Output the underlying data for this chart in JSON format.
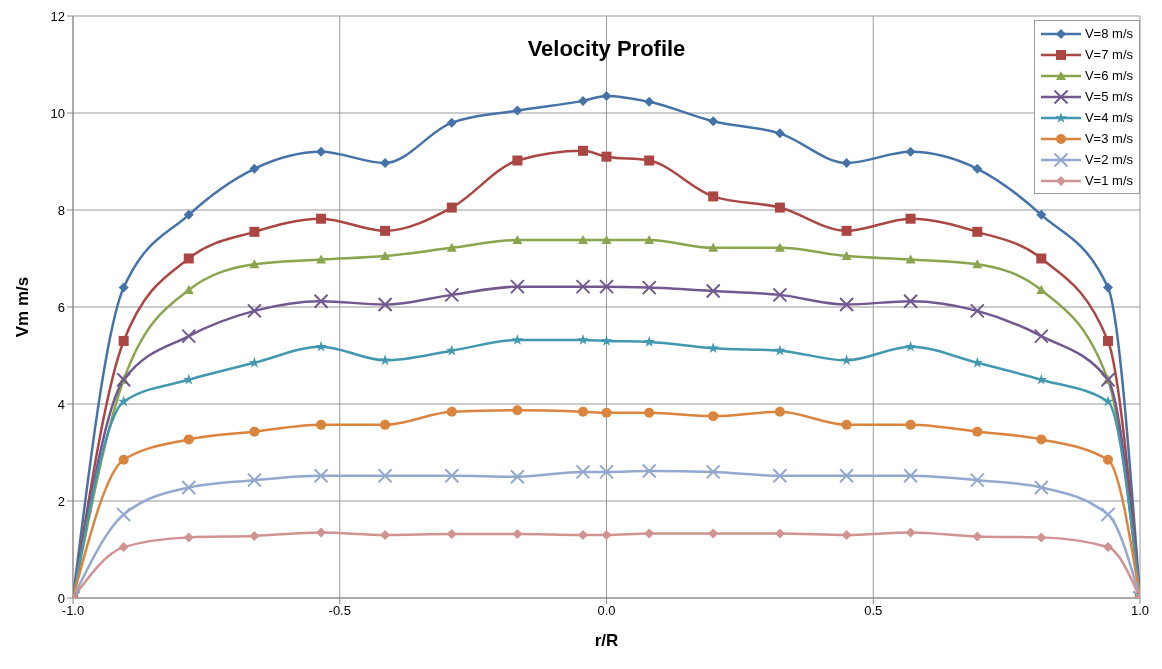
{
  "chart_data": {
    "type": "line",
    "title": "Velocity Profile",
    "xlabel": "r/R",
    "ylabel": "Vm m/s",
    "x": [
      -1,
      -0.905,
      -0.783,
      -0.66,
      -0.535,
      -0.415,
      -0.29,
      -0.167,
      -0.044,
      0,
      0.08,
      0.2,
      0.325,
      0.45,
      0.57,
      0.695,
      0.815,
      0.94,
      1
    ],
    "series": [
      {
        "name": "V=8 m/s",
        "color": "#4572a7",
        "marker": "diamond",
        "values": [
          0,
          6.4,
          7.9,
          8.85,
          9.2,
          8.97,
          9.8,
          10.05,
          10.25,
          10.35,
          10.23,
          9.83,
          9.58,
          8.97,
          9.2,
          8.85,
          7.9,
          6.4,
          0
        ]
      },
      {
        "name": "V=7 m/s",
        "color": "#aa4643",
        "marker": "square",
        "values": [
          0,
          5.3,
          7.0,
          7.55,
          7.82,
          7.57,
          8.05,
          9.02,
          9.22,
          9.1,
          9.02,
          8.28,
          8.05,
          7.57,
          7.82,
          7.55,
          7.0,
          5.3,
          0
        ]
      },
      {
        "name": "V=6 m/s",
        "color": "#89a54e",
        "marker": "triangle",
        "values": [
          0,
          4.5,
          6.35,
          6.88,
          6.98,
          7.05,
          7.22,
          7.38,
          7.38,
          7.38,
          7.38,
          7.22,
          7.22,
          7.05,
          6.98,
          6.88,
          6.35,
          4.5,
          0
        ]
      },
      {
        "name": "V=5 m/s",
        "color": "#71588f",
        "marker": "cross",
        "values": [
          0,
          4.5,
          5.4,
          5.92,
          6.12,
          6.05,
          6.25,
          6.42,
          6.42,
          6.42,
          6.4,
          6.33,
          6.25,
          6.05,
          6.12,
          5.92,
          5.4,
          4.5,
          0
        ]
      },
      {
        "name": "V=4 m/s",
        "color": "#4198af",
        "marker": "star",
        "values": [
          0,
          4.05,
          4.5,
          4.85,
          5.18,
          4.9,
          5.1,
          5.32,
          5.32,
          5.3,
          5.28,
          5.15,
          5.1,
          4.9,
          5.18,
          4.85,
          4.5,
          4.05,
          0
        ]
      },
      {
        "name": "V=3 m/s",
        "color": "#db843d",
        "marker": "circle",
        "values": [
          0,
          2.85,
          3.27,
          3.43,
          3.57,
          3.57,
          3.84,
          3.87,
          3.84,
          3.82,
          3.82,
          3.75,
          3.84,
          3.57,
          3.57,
          3.43,
          3.27,
          2.85,
          0
        ]
      },
      {
        "name": "V=2 m/s",
        "color": "#93a9cf",
        "marker": "cross",
        "values": [
          0,
          1.72,
          2.28,
          2.43,
          2.52,
          2.52,
          2.52,
          2.5,
          2.6,
          2.6,
          2.62,
          2.6,
          2.52,
          2.52,
          2.52,
          2.43,
          2.28,
          1.72,
          0
        ]
      },
      {
        "name": "V=1 m/s",
        "color": "#d19392",
        "marker": "diamond",
        "values": [
          0,
          1.05,
          1.25,
          1.28,
          1.35,
          1.3,
          1.32,
          1.32,
          1.3,
          1.3,
          1.33,
          1.33,
          1.33,
          1.3,
          1.35,
          1.27,
          1.25,
          1.05,
          0
        ]
      }
    ],
    "xlim": [
      -1,
      1
    ],
    "xticks": [
      {
        "value": -1,
        "label": "-1.0"
      },
      {
        "value": -0.5,
        "label": "-0.5"
      },
      {
        "value": 0,
        "label": "0.0"
      },
      {
        "value": 0.5,
        "label": "0.5"
      },
      {
        "value": 1,
        "label": "1.0"
      }
    ],
    "ylim": [
      0,
      12
    ],
    "yticks": [
      0,
      2,
      4,
      6,
      8,
      10,
      12
    ],
    "grid": true,
    "legend": "top right",
    "line_style": "solid"
  }
}
